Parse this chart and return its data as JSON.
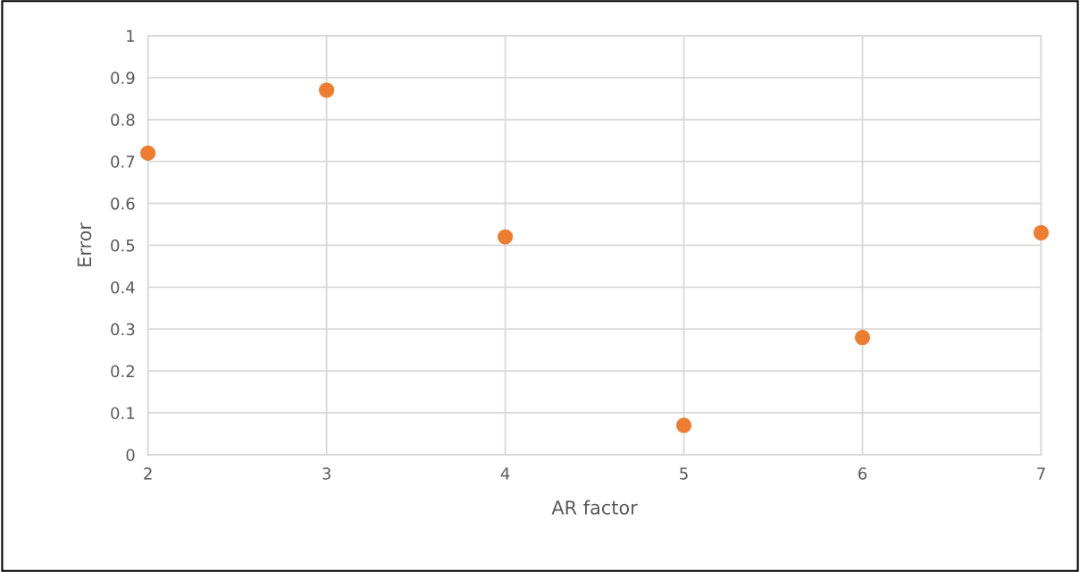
{
  "chart_data": {
    "type": "scatter",
    "xlabel": "AR factor",
    "ylabel": "Error",
    "x": [
      2,
      3,
      4,
      5,
      6,
      7
    ],
    "series": [
      {
        "color": "#ed7d31",
        "values": [
          0.72,
          0.87,
          0.52,
          0.07,
          0.28,
          0.53
        ]
      }
    ],
    "xlim": [
      2,
      7
    ],
    "xticks": [
      2,
      3,
      4,
      5,
      6,
      7
    ],
    "ylim": [
      0,
      1
    ],
    "yticks": [
      0,
      0.1,
      0.2,
      0.3,
      0.4,
      0.5,
      0.6,
      0.7,
      0.8,
      0.9,
      1
    ],
    "grid": true,
    "marker": "circle",
    "legend": false
  }
}
